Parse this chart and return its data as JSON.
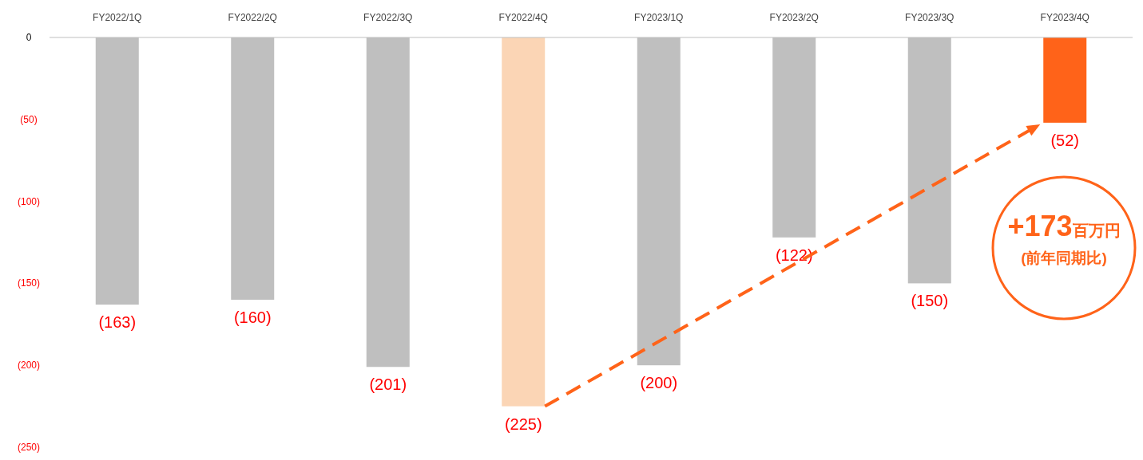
{
  "chart_data": {
    "type": "bar",
    "categories": [
      "FY2022/1Q",
      "FY2022/2Q",
      "FY2022/3Q",
      "FY2022/4Q",
      "FY2023/1Q",
      "FY2023/2Q",
      "FY2023/3Q",
      "FY2023/4Q"
    ],
    "values": [
      -163,
      -160,
      -201,
      -225,
      -200,
      -122,
      -150,
      -52
    ],
    "colors": [
      "#bfbfbf",
      "#bfbfbf",
      "#bfbfbf",
      "#fbd5b5",
      "#bfbfbf",
      "#bfbfbf",
      "#bfbfbf",
      "#ff6319"
    ],
    "value_labels": [
      "(163)",
      "(160)",
      "(201)",
      "(225)",
      "(200)",
      "(122)",
      "(150)",
      "(52)"
    ],
    "ylim": [
      -250,
      0
    ],
    "yticks": [
      0,
      {
        "value": -50,
        "label": "(50)"
      },
      {
        "value": -100,
        "label": "(100)"
      },
      {
        "value": -150,
        "label": "(150)"
      },
      {
        "value": -200,
        "label": "(200)"
      },
      {
        "value": -250,
        "label": "(250)"
      }
    ],
    "annotations": [
      "+173百万円",
      "(前年同期比)"
    ],
    "grid": false
  }
}
